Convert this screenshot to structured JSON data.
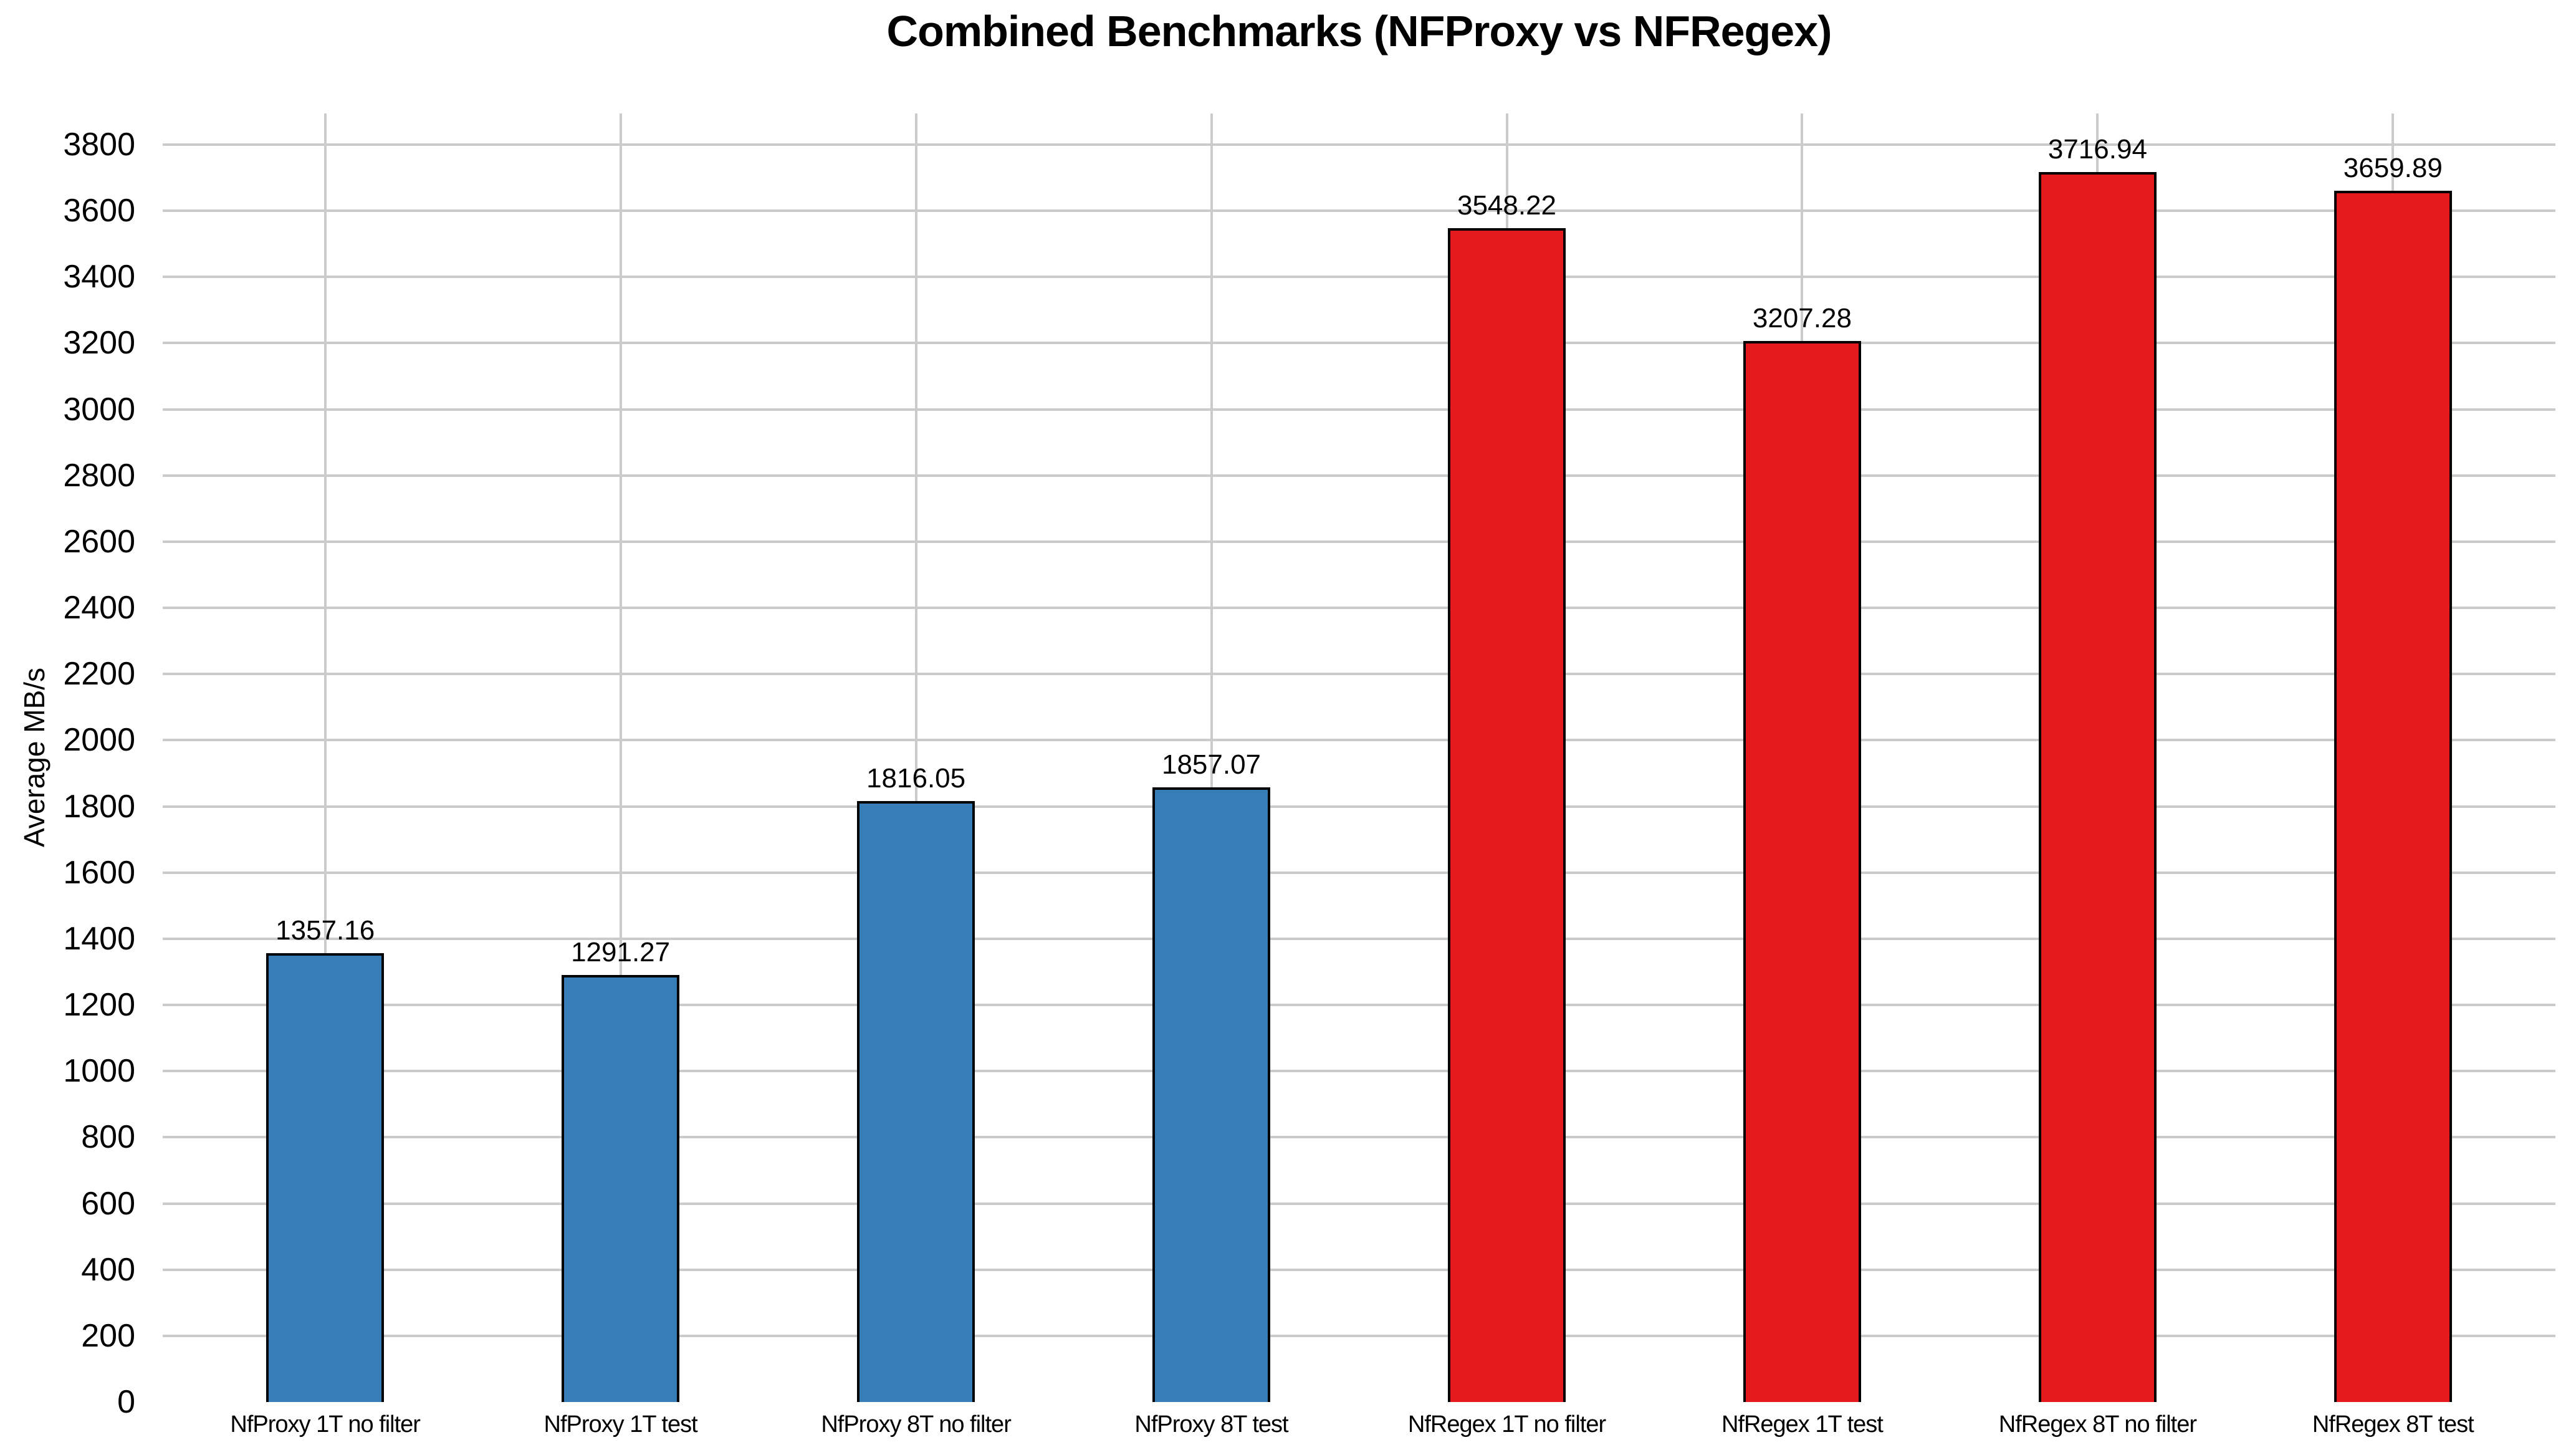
{
  "chart_data": {
    "type": "bar",
    "title": "Combined Benchmarks (NFProxy vs NFRegex)",
    "ylabel": "Average MB/s",
    "xlabel": "",
    "categories": [
      "NfProxy 1T no filter",
      "NfProxy 1T test",
      "NfProxy 8T no filter",
      "NfProxy 8T test",
      "NfRegex 1T no filter",
      "NfRegex 1T test",
      "NfRegex 8T no filter",
      "NfRegex 8T test"
    ],
    "values": [
      1357.16,
      1291.27,
      1816.05,
      1857.07,
      3548.22,
      3207.28,
      3716.94,
      3659.89
    ],
    "value_labels": [
      "1357.16",
      "1291.27",
      "1816.05",
      "1857.07",
      "3548.22",
      "3207.28",
      "3716.94",
      "3659.89"
    ],
    "bar_colors": [
      "#377EB8",
      "#377EB8",
      "#377EB8",
      "#377EB8",
      "#E41A1C",
      "#E41A1C",
      "#E41A1C",
      "#E41A1C"
    ],
    "groups": [
      {
        "name": "NFProxy",
        "color": "#377EB8",
        "categories_span": [
          0,
          3
        ]
      },
      {
        "name": "NFRegex",
        "color": "#E41A1C",
        "categories_span": [
          4,
          7
        ]
      }
    ],
    "yticks": [
      0,
      200,
      400,
      600,
      800,
      1000,
      1200,
      1400,
      1600,
      1800,
      2000,
      2200,
      2400,
      2600,
      2800,
      3000,
      3200,
      3400,
      3600,
      3800
    ],
    "ylim": [
      0,
      3894
    ],
    "grid": {
      "horizontal": true,
      "vertical": true,
      "color": "#CBCBCB"
    },
    "legend_position": "none",
    "colors": {
      "bar_border": "#000000",
      "text": "#000000",
      "background": "#FFFFFF"
    }
  }
}
